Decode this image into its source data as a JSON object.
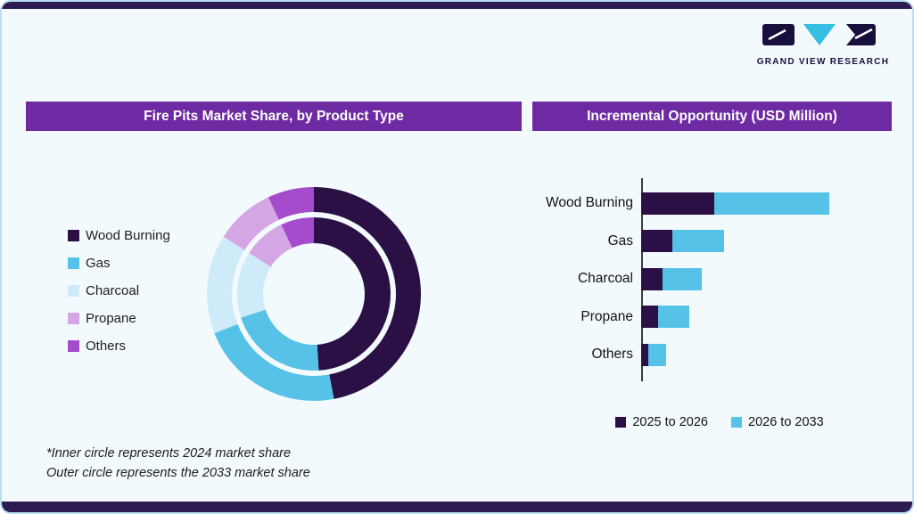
{
  "brand": {
    "name": "GRAND VIEW RESEARCH"
  },
  "panels": {
    "left": {
      "title": "Fire Pits Market Share, by Product Type"
    },
    "right": {
      "title": "Incremental Opportunity (USD Million)"
    }
  },
  "footnote": {
    "line1": "*Inner circle represents 2024 market share",
    "line2": "Outer circle represents the 2033 market share"
  },
  "colors": {
    "header_bar": "#6d2aa3",
    "accent_strip": "#2d1b52",
    "background": "#f3fafe",
    "border": "#b5e1f2",
    "brand_navy": "#18103c",
    "brand_cyan": "#35bde4"
  },
  "chart_data": [
    {
      "type": "pie",
      "subtype": "double-donut",
      "title": "Fire Pits Market Share, by Product Type",
      "categories": [
        "Wood Burning",
        "Gas",
        "Charcoal",
        "Propane",
        "Others"
      ],
      "series": [
        {
          "name": "2024 market share (inner circle)",
          "values": [
            49,
            21,
            14,
            9,
            7
          ]
        },
        {
          "name": "2033 market share (outer circle)",
          "values": [
            47,
            22,
            15,
            9,
            7
          ]
        }
      ],
      "colors": [
        "#2a1045",
        "#56c2e8",
        "#cfeaf8",
        "#d5a6e4",
        "#a54ccc"
      ],
      "legend_position": "left",
      "units": "percent (estimated, no labels shown)"
    },
    {
      "type": "bar",
      "orientation": "horizontal",
      "stacked": true,
      "title": "Incremental Opportunity (USD Million)",
      "categories": [
        "Wood Burning",
        "Gas",
        "Charcoal",
        "Propane",
        "Others"
      ],
      "series": [
        {
          "name": "2025 to 2026",
          "color": "#2a1045",
          "values": [
            82,
            35,
            24,
            19,
            8
          ]
        },
        {
          "name": "2026 to 2033",
          "color": "#56c2e8",
          "values": [
            129,
            58,
            44,
            35,
            20
          ]
        }
      ],
      "xlabel": "",
      "ylabel": "",
      "value_axis_shown": false,
      "units": "relative (no numeric axis labels shown)",
      "legend_position": "bottom"
    }
  ]
}
